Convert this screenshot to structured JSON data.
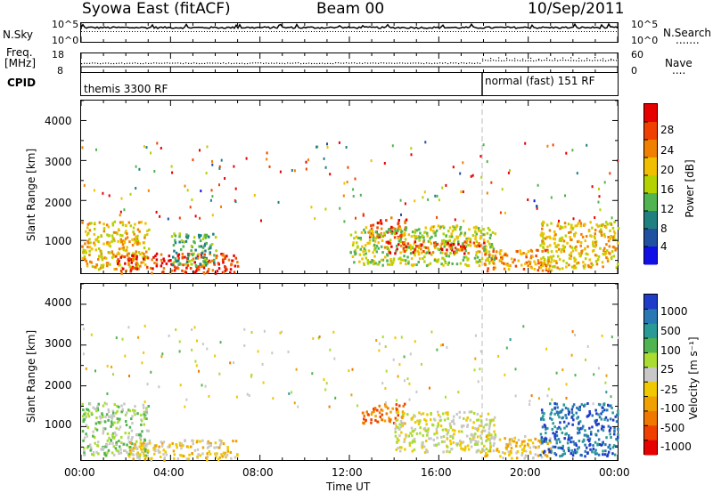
{
  "header": {
    "station": "Syowa East (fitACF)",
    "beam": "Beam 00",
    "date": "10/Sep/2011"
  },
  "panels": {
    "nsky": {
      "label": "N.Sky",
      "ticks_left": [
        "10^5",
        "10^0"
      ],
      "ticks_right": [
        "10^5",
        "10^0"
      ],
      "right_label": "N.Search",
      "right_legend": "......."
    },
    "freq": {
      "label_line1": "Freq.",
      "label_line2": "[MHz]",
      "ticks_left": [
        "18",
        "8"
      ],
      "ticks_right": [
        "60",
        "0"
      ],
      "right_label": "Nave",
      "right_legend": "...."
    },
    "cpid": {
      "label": "CPID",
      "segments": [
        "themis 3300 RF",
        "normal (fast) 151 RF"
      ]
    }
  },
  "axes": {
    "y_label": "Slant Range [km]",
    "y_ticks": [
      "4000",
      "3000",
      "2000",
      "1000"
    ],
    "x_ticks": [
      "00:00",
      "04:00",
      "08:00",
      "12:00",
      "16:00",
      "20:00",
      "00:00"
    ],
    "x_label": "Time UT"
  },
  "colorbars": {
    "power": {
      "label": "Power [dB]",
      "ticks": [
        "28",
        "24",
        "20",
        "16",
        "12",
        "8",
        "4"
      ],
      "colors": [
        "#e60000",
        "#f04000",
        "#f08000",
        "#f0c000",
        "#b4d200",
        "#50b450",
        "#208080",
        "#2050a0",
        "#1010e6"
      ]
    },
    "velocity": {
      "label": "Velocity [m s⁻¹]",
      "ticks": [
        "1000",
        "500",
        "100",
        "25",
        "-25",
        "-100",
        "-500",
        "-1000"
      ],
      "colors": [
        "#1e3cc8",
        "#2878b4",
        "#2a9a96",
        "#50b450",
        "#aadc32",
        "#c8c8c8",
        "#f0c800",
        "#f0a000",
        "#f07800",
        "#f04000",
        "#e60000"
      ]
    }
  },
  "chart_data": [
    {
      "type": "heatmap",
      "title": "Power",
      "xlabel": "Time UT",
      "ylabel": "Slant Range [km]",
      "xlim": [
        0,
        24
      ],
      "ylim": [
        180,
        4500
      ],
      "colorbar_label": "Power [dB]",
      "colorbar_range": [
        0,
        30
      ],
      "scatter_regions": [
        {
          "t": [
            0.0,
            3.0
          ],
          "r": [
            300,
            1500
          ],
          "value": 18
        },
        {
          "t": [
            1.5,
            7.0
          ],
          "r": [
            200,
            700
          ],
          "value": 26
        },
        {
          "t": [
            4.0,
            6.0
          ],
          "r": [
            400,
            1200
          ],
          "value": 10
        },
        {
          "t": [
            12.8,
            14.5
          ],
          "r": [
            1100,
            1600
          ],
          "value": 27
        },
        {
          "t": [
            12.0,
            18.5
          ],
          "r": [
            400,
            1400
          ],
          "value": 16
        },
        {
          "t": [
            13.5,
            18.0
          ],
          "r": [
            700,
            1000
          ],
          "value": 26
        },
        {
          "t": [
            18.0,
            21.0
          ],
          "r": [
            250,
            800
          ],
          "value": 22
        },
        {
          "t": [
            20.5,
            24.0
          ],
          "r": [
            300,
            1500
          ],
          "value": 18
        }
      ]
    },
    {
      "type": "heatmap",
      "title": "Velocity",
      "xlabel": "Time UT",
      "ylabel": "Slant Range [km]",
      "xlim": [
        0,
        24
      ],
      "ylim": [
        180,
        4500
      ],
      "colorbar_label": "Velocity [m s⁻¹]",
      "colorbar_range": [
        -1000,
        1000
      ],
      "scatter_regions": [
        {
          "t": [
            0.0,
            3.0
          ],
          "r": [
            300,
            1600
          ],
          "value": 300
        },
        {
          "t": [
            2.0,
            7.0
          ],
          "r": [
            200,
            700
          ],
          "value": -200
        },
        {
          "t": [
            12.5,
            14.5
          ],
          "r": [
            1100,
            1600
          ],
          "value": -600
        },
        {
          "t": [
            14.0,
            18.5
          ],
          "r": [
            400,
            1400
          ],
          "value": 100
        },
        {
          "t": [
            18.0,
            21.0
          ],
          "r": [
            250,
            800
          ],
          "value": -100
        },
        {
          "t": [
            20.5,
            24.0
          ],
          "r": [
            300,
            1600
          ],
          "value": 900
        }
      ]
    }
  ]
}
